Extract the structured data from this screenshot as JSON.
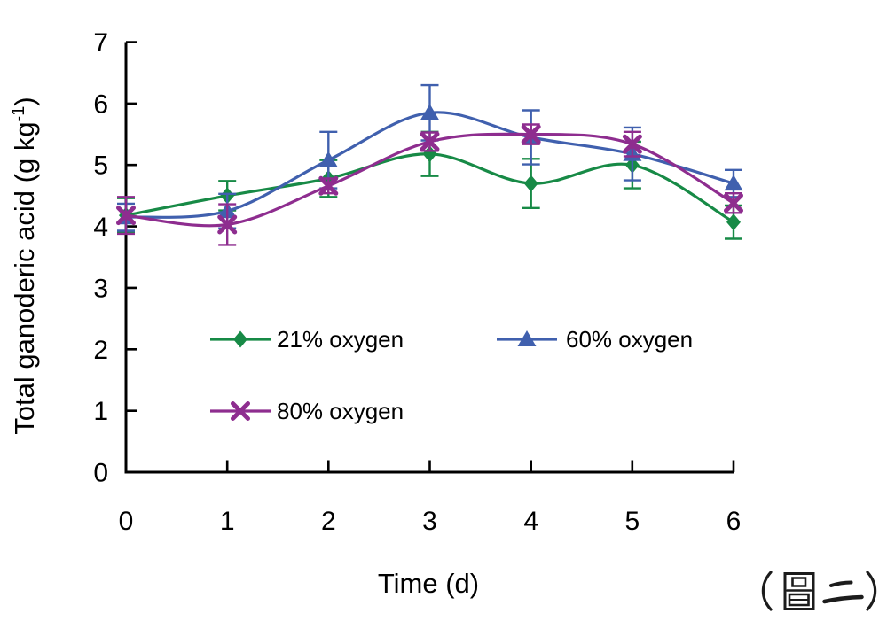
{
  "figure": {
    "background": "#ffffff",
    "annotation": "（圖二）",
    "annotation_meaning": "Figure 2"
  },
  "chart_data": {
    "type": "line",
    "title": "",
    "xlabel": "Time (d)",
    "ylabel": "Total ganoderic acid (g kg⁻¹)",
    "ylabel_parts": {
      "main": "Total ganoderic acid (g kg",
      "sup": "-1",
      "close": ")"
    },
    "xlim": [
      0,
      6
    ],
    "ylim": [
      0,
      7
    ],
    "xticks": [
      0,
      1,
      2,
      3,
      4,
      5,
      6
    ],
    "yticks": [
      0,
      1,
      2,
      3,
      4,
      5,
      6,
      7
    ],
    "grid": false,
    "smoothed_lines": true,
    "error_bars": true,
    "legend_position": "inside plot, lower area, two rows",
    "axis_color": "#000000",
    "x": [
      0,
      1,
      2,
      3,
      4,
      5,
      6
    ],
    "series": [
      {
        "name": "21% oxygen",
        "marker": "diamond",
        "color": "#178a46",
        "values": [
          4.18,
          4.5,
          4.78,
          5.18,
          4.7,
          5.0,
          4.07
        ],
        "errors": [
          0.28,
          0.24,
          0.3,
          0.36,
          0.4,
          0.38,
          0.27
        ]
      },
      {
        "name": "60% oxygen",
        "marker": "triangle",
        "color": "#4060ae",
        "values": [
          4.15,
          4.25,
          5.08,
          5.85,
          5.45,
          5.18,
          4.7
        ],
        "errors": [
          0.22,
          0.28,
          0.46,
          0.45,
          0.44,
          0.43,
          0.22
        ]
      },
      {
        "name": "80% oxygen",
        "marker": "x",
        "color": "#8e2d8f",
        "values": [
          4.18,
          4.03,
          4.66,
          5.38,
          5.5,
          5.34,
          4.38
        ],
        "errors": [
          0.3,
          0.33,
          0.12,
          0.15,
          0.16,
          0.2,
          0.16
        ]
      }
    ]
  }
}
